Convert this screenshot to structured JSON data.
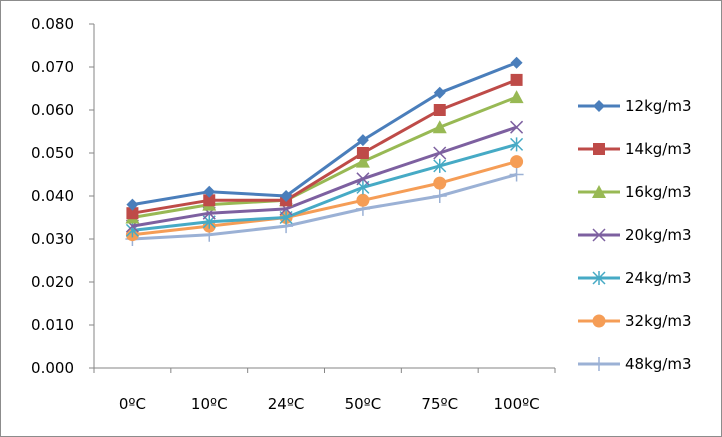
{
  "chart_data": {
    "type": "line",
    "title": "",
    "xlabel": "",
    "ylabel": "",
    "categories": [
      "0ºC",
      "10ºC",
      "24ºC",
      "50ºC",
      "75ºC",
      "100ºC"
    ],
    "ylim": [
      0,
      0.08
    ],
    "yticks": [
      "0.000",
      "0.010",
      "0.020",
      "0.030",
      "0.040",
      "0.050",
      "0.060",
      "0.070",
      "0.080"
    ],
    "grid": "none",
    "legend_position": "right",
    "series": [
      {
        "name": "12kg/m3",
        "color": "#4a7ebb",
        "marker": "diamond",
        "values": [
          0.038,
          0.041,
          0.04,
          0.053,
          0.064,
          0.071
        ]
      },
      {
        "name": "14kg/m3",
        "color": "#be4b48",
        "marker": "square",
        "values": [
          0.036,
          0.039,
          0.039,
          0.05,
          0.06,
          0.067
        ]
      },
      {
        "name": "16kg/m3",
        "color": "#98b954",
        "marker": "triangle",
        "values": [
          0.035,
          0.038,
          0.039,
          0.048,
          0.056,
          0.063
        ]
      },
      {
        "name": "20kg/m3",
        "color": "#7d60a0",
        "marker": "x",
        "values": [
          0.033,
          0.036,
          0.037,
          0.044,
          0.05,
          0.056
        ]
      },
      {
        "name": "24kg/m3",
        "color": "#46aac5",
        "marker": "star",
        "values": [
          0.032,
          0.034,
          0.035,
          0.042,
          0.047,
          0.052
        ]
      },
      {
        "name": "32kg/m3",
        "color": "#f59d56",
        "marker": "circle",
        "values": [
          0.031,
          0.033,
          0.035,
          0.039,
          0.043,
          0.048
        ]
      },
      {
        "name": "48kg/m3",
        "color": "#9bb1d5",
        "marker": "plus",
        "values": [
          0.03,
          0.031,
          0.033,
          0.037,
          0.04,
          0.045
        ]
      }
    ]
  }
}
